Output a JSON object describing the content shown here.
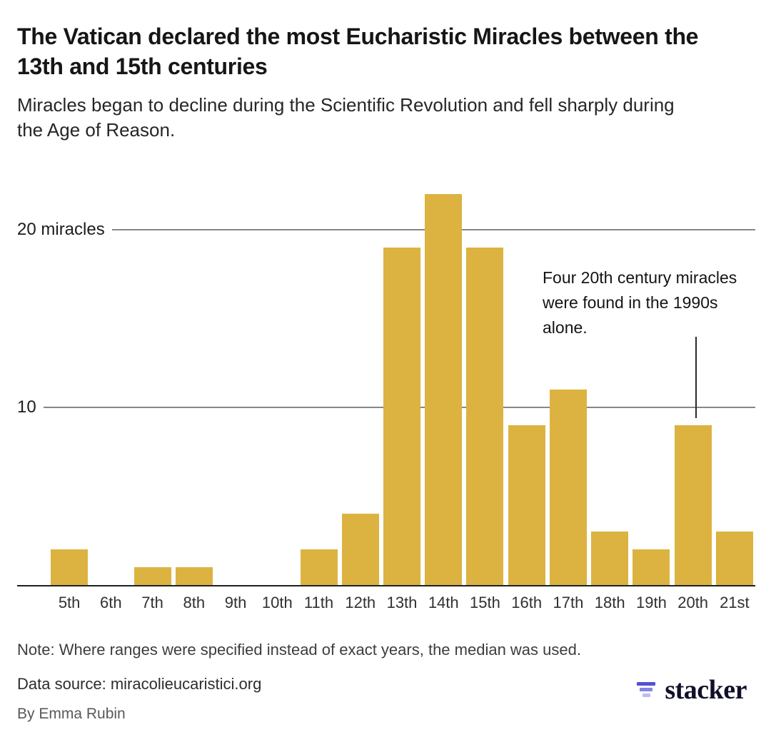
{
  "header": {
    "title": "The Vatican declared the most Eucharistic Miracles between the 13th and 15th centuries",
    "subtitle": "Miracles began to decline during the Scientific Revolution and fell sharply during the Age of Reason."
  },
  "chart_data": {
    "type": "bar",
    "title": "The Vatican declared the most Eucharistic Miracles between the 13th and 15th centuries",
    "subtitle": "Miracles began to decline during the Scientific Revolution and fell sharply during the Age of Reason.",
    "categories": [
      "5th",
      "6th",
      "7th",
      "8th",
      "9th",
      "10th",
      "11th",
      "12th",
      "13th",
      "14th",
      "15th",
      "16th",
      "17th",
      "18th",
      "19th",
      "20th",
      "21st"
    ],
    "values": [
      2,
      0,
      1,
      1,
      0,
      0,
      2,
      4,
      19,
      22,
      19,
      9,
      11,
      3,
      2,
      9,
      3
    ],
    "xlabel": "",
    "ylabel": "",
    "ylim": [
      0,
      22.5
    ],
    "yticks": [
      {
        "value": 20,
        "label": "20 miracles"
      },
      {
        "value": 10,
        "label": "10"
      }
    ],
    "grid": "horizontal",
    "legend": "off",
    "bar_color": "#dcb340",
    "gridline_color": "#878787",
    "annotation": {
      "text": "Four 20th century miracles were found in the 1990s alone.",
      "target_category": "20th",
      "target_value": 9
    }
  },
  "footer": {
    "note": "Note: Where ranges were specified instead of exact years, the median was used.",
    "source": "Data source: miracolieucaristici.org",
    "byline": "By Emma Rubin",
    "brand_name": "stacker"
  }
}
